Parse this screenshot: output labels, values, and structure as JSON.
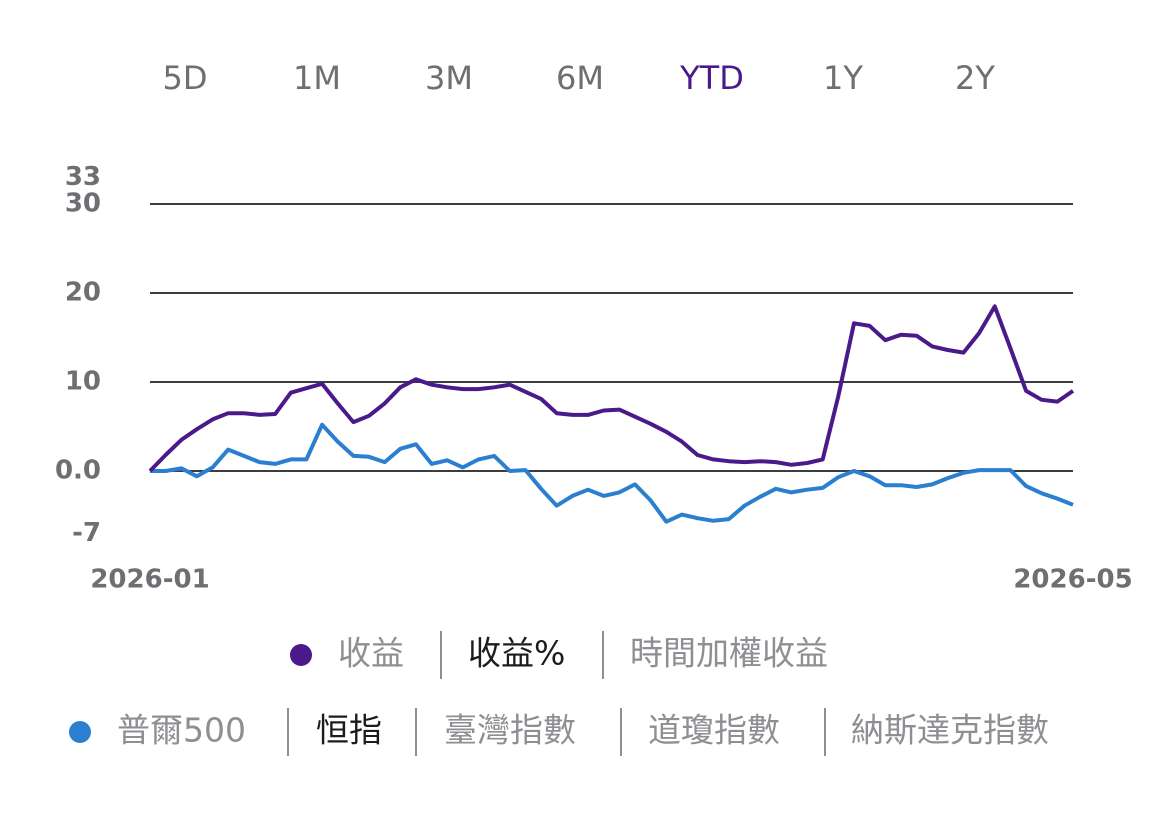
{
  "tabs": [
    "5D",
    "1M",
    "3M",
    "6M",
    "YTD",
    "1Y",
    "2Y"
  ],
  "active_tab": 4,
  "active_tab_color": "#4b1a8a",
  "chart_data": {
    "type": "line",
    "categories": [
      "2026-01",
      null,
      null,
      null,
      null,
      null,
      null,
      null,
      null,
      null,
      null,
      null,
      null,
      null,
      null,
      null,
      null,
      null,
      null,
      null,
      null,
      null,
      null,
      null,
      null,
      null,
      null,
      null,
      null,
      null,
      null,
      null,
      null,
      null,
      null,
      null,
      null,
      null,
      null,
      null,
      null,
      null,
      null,
      null,
      null,
      null,
      null,
      null,
      null,
      null,
      null,
      null,
      null,
      null,
      null,
      null,
      null,
      null,
      null,
      "2026-05"
    ],
    "series": [
      {
        "color": "#4b1a8a",
        "values": [
          0,
          1.8,
          3.5,
          4.7,
          5.8,
          6.5,
          6.5,
          6.3,
          6.4,
          8.8,
          9.3,
          9.8,
          7.6,
          5.5,
          6.2,
          7.6,
          9.4,
          10.3,
          9.7,
          9.4,
          9.2,
          9.2,
          9.4,
          9.7,
          8.9,
          8.1,
          6.5,
          6.3,
          6.3,
          6.8,
          6.9,
          6.1,
          5.3,
          4.4,
          3.3,
          1.8,
          1.3,
          1.1,
          1.0,
          1.1,
          1.0,
          0.7,
          0.9,
          1.3,
          8.4,
          16.6,
          16.3,
          14.7,
          15.3,
          15.2,
          14.0,
          13.6,
          13.3,
          15.5,
          18.5,
          13.8,
          9.0,
          8.0,
          7.8,
          9.0
        ]
      },
      {
        "color": "#2a7fd0",
        "values": [
          0,
          0,
          0.3,
          -0.6,
          0.4,
          2.4,
          1.7,
          1.0,
          0.8,
          1.3,
          1.3,
          5.2,
          3.3,
          1.7,
          1.6,
          1.0,
          2.5,
          3.0,
          0.8,
          1.2,
          0.4,
          1.3,
          1.7,
          0,
          0.1,
          -2.0,
          -3.9,
          -2.8,
          -2.1,
          -2.8,
          -2.4,
          -1.5,
          -3.3,
          -5.7,
          -4.9,
          -5.3,
          -5.6,
          -5.4,
          -3.9,
          -2.9,
          -2.0,
          -2.4,
          -2.1,
          -1.9,
          -0.7,
          0,
          -0.6,
          -1.6,
          -1.6,
          -1.8,
          -1.5,
          -0.8,
          -0.2,
          0.1,
          0.1,
          0.1,
          -1.7,
          -2.5,
          -3.1,
          -3.8
        ]
      }
    ],
    "ylim": [
      -7,
      33
    ],
    "yticks": [
      -7,
      {
        "value": 0,
        "label": "0.0"
      },
      10,
      20,
      30,
      33
    ],
    "grid": true
  },
  "metric_options": [
    "收益",
    "收益%",
    "時間加權收益"
  ],
  "metric_selected": 1,
  "benchmark_options": [
    "普爾500",
    "恒指",
    "臺灣指數",
    "道瓊指數",
    "納斯達克指數"
  ],
  "benchmark_selected": 1
}
